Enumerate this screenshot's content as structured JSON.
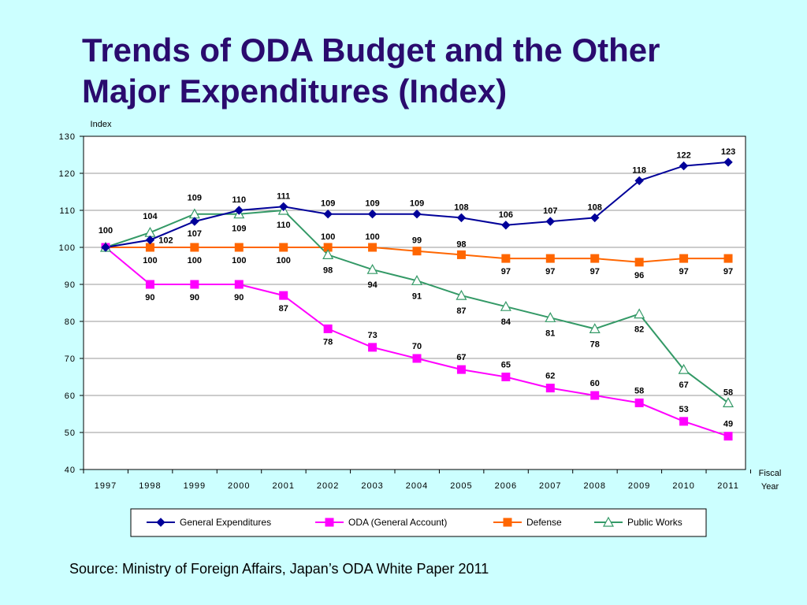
{
  "title_line1": "Trends of ODA Budget and the Other",
  "title_line2": "Major Expenditures (Index)",
  "source": "Source: Ministry of Foreign Affairs, Japan’s ODA White Paper 2011",
  "chart_data": {
    "type": "line",
    "ylabel": "Index",
    "xlabel": [
      "Fiscal",
      "Year"
    ],
    "ylim": [
      40,
      130
    ],
    "yticks": [
      40,
      50,
      60,
      70,
      80,
      90,
      100,
      110,
      120,
      130
    ],
    "grid": true,
    "legend_position": "bottom",
    "categories": [
      "1997",
      "1998",
      "1999",
      "2000",
      "2001",
      "2002",
      "2003",
      "2004",
      "2005",
      "2006",
      "2007",
      "2008",
      "2009",
      "2010",
      "2011"
    ],
    "series": [
      {
        "name": "General Expenditures",
        "color": "#000099",
        "marker": "diamond",
        "values": [
          100,
          102,
          107,
          110,
          111,
          109,
          109,
          109,
          108,
          106,
          107,
          108,
          118,
          122,
          123
        ],
        "labels": [
          "",
          "102",
          "107",
          "110",
          "111",
          "109",
          "109",
          "109",
          "108",
          "106",
          "107",
          "108",
          "118",
          "122",
          "123"
        ]
      },
      {
        "name": "ODA (General Account)",
        "color": "#ff00ff",
        "marker": "square",
        "values": [
          100,
          90,
          90,
          90,
          87,
          78,
          73,
          70,
          67,
          65,
          62,
          60,
          58,
          53,
          49
        ],
        "labels": [
          "",
          "90",
          "90",
          "90",
          "87",
          "78",
          "73",
          "70",
          "67",
          "65",
          "62",
          "60",
          "58",
          "53",
          "49"
        ]
      },
      {
        "name": "Defense",
        "color": "#ff6600",
        "marker": "square",
        "values": [
          100,
          100,
          100,
          100,
          100,
          100,
          100,
          99,
          98,
          97,
          97,
          97,
          96,
          97,
          97
        ],
        "labels": [
          "100",
          "100",
          "100",
          "100",
          "100",
          "100",
          "100",
          "99",
          "98",
          "97",
          "97",
          "97",
          "96",
          "97",
          "97"
        ]
      },
      {
        "name": "Public Works",
        "color": "#339966",
        "marker": "triangle-open",
        "values": [
          100,
          104,
          109,
          109,
          110,
          98,
          94,
          91,
          87,
          84,
          81,
          78,
          82,
          67,
          58
        ],
        "labels": [
          "",
          "104",
          "109",
          "109",
          "110",
          "98",
          "94",
          "91",
          "87",
          "84",
          "81",
          "78",
          "82",
          "67",
          "58"
        ]
      }
    ]
  }
}
